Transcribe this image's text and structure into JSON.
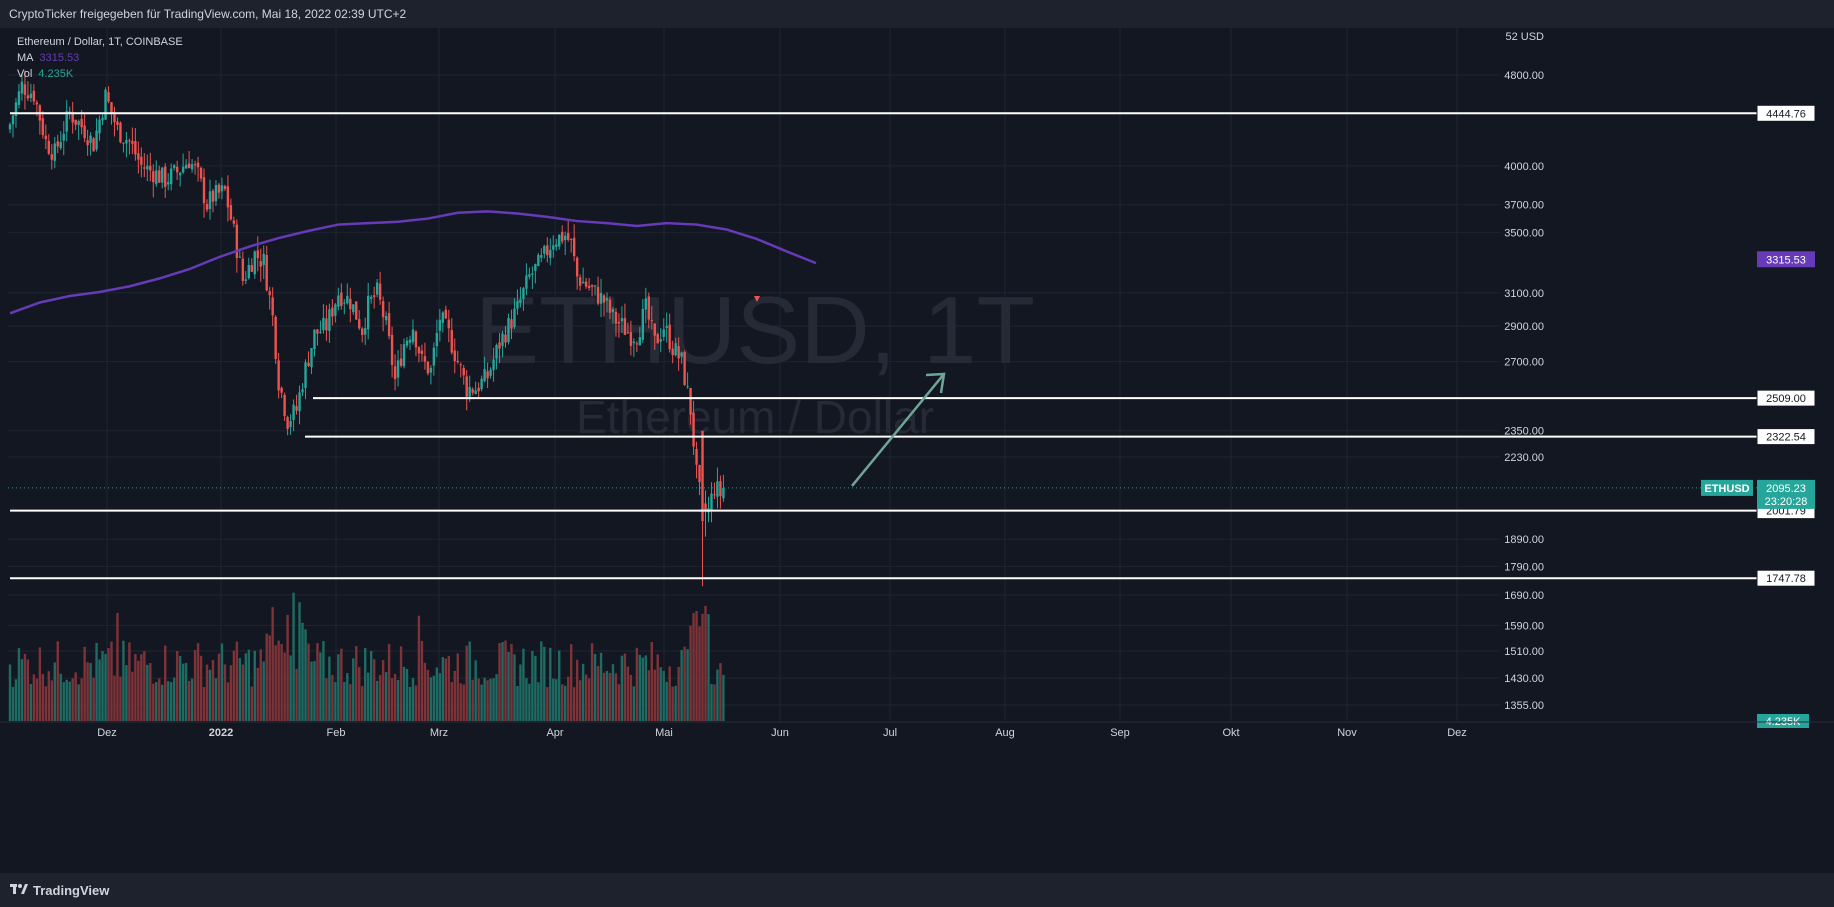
{
  "header": {
    "title": "CryptoTicker freigegeben für TradingView.com, Mai 18, 2022 02:39 UTC+2"
  },
  "legend": {
    "symbol_line": "Ethereum / Dollar, 1T, COINBASE",
    "ma_label": "MA",
    "ma_value": "3315.53",
    "vol_label": "Vol",
    "vol_value": "4.235K"
  },
  "watermark": {
    "symbol": "ETHUSD, 1T",
    "name": "Ethereum / Dollar"
  },
  "footer": {
    "brand": "TradingView"
  },
  "colors": {
    "background": "#131722",
    "up": "#26a69a",
    "down": "#ef5350",
    "ma": "#673ab7",
    "level_line": "#ffffff",
    "arrow": "#6fa596"
  },
  "chart_data": {
    "type": "candlestick",
    "currency": "USD",
    "y_scale": "log",
    "ylim": [
      1330,
      5200
    ],
    "price_ticks": [
      "4800.00",
      "4000.00",
      "3700.00",
      "3500.00",
      "3100.00",
      "2900.00",
      "2700.00",
      "2350.00",
      "2230.00",
      "1890.00",
      "1790.00",
      "1690.00",
      "1590.00",
      "1510.00",
      "1430.00",
      "1355.00"
    ],
    "x_ticks": [
      "Dez",
      "2022",
      "Feb",
      "Mrz",
      "Apr",
      "Mai",
      "Jun",
      "Jul",
      "Aug",
      "Sep",
      "Okt",
      "Nov",
      "Dez"
    ],
    "levels": [
      {
        "value": 4444.76,
        "label": "4444.76"
      },
      {
        "value": 2509.0,
        "label": "2509.00"
      },
      {
        "value": 2322.54,
        "label": "2322.54"
      },
      {
        "value": 2001.79,
        "label": "2001.79"
      },
      {
        "value": 1747.78,
        "label": "1747.78"
      }
    ],
    "ma_series": {
      "name": "MA",
      "last_value": 3315.53,
      "points": [
        [
          0,
          2975
        ],
        [
          10,
          3040
        ],
        [
          20,
          3080
        ],
        [
          30,
          3105
        ],
        [
          40,
          3140
        ],
        [
          50,
          3190
        ],
        [
          60,
          3250
        ],
        [
          70,
          3330
        ],
        [
          80,
          3400
        ],
        [
          90,
          3460
        ],
        [
          100,
          3510
        ],
        [
          110,
          3555
        ],
        [
          120,
          3565
        ],
        [
          130,
          3575
        ],
        [
          140,
          3598
        ],
        [
          150,
          3640
        ],
        [
          160,
          3650
        ],
        [
          170,
          3635
        ],
        [
          180,
          3610
        ],
        [
          190,
          3580
        ],
        [
          200,
          3565
        ],
        [
          210,
          3545
        ],
        [
          220,
          3565
        ],
        [
          230,
          3555
        ],
        [
          240,
          3520
        ],
        [
          250,
          3455
        ],
        [
          260,
          3370
        ],
        [
          270,
          3290
        ]
      ]
    },
    "last_price": {
      "symbol": "ETHUSD",
      "value": "2095.23",
      "countdown": "23:20:28"
    },
    "ma_label": {
      "value": "3315.53"
    },
    "volume_label": {
      "value": "4.235K"
    },
    "arrow_annotation": {
      "from_value": 2095,
      "to_value": 2520,
      "label": ""
    }
  }
}
